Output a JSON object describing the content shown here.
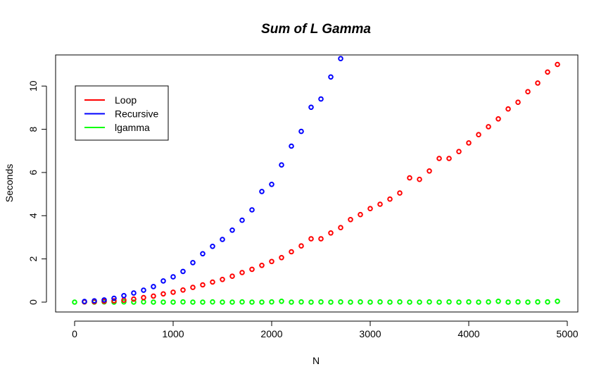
{
  "chart_data": {
    "type": "scatter",
    "title": "Sum of L Gamma",
    "xlabel": "N",
    "ylabel": "Seconds",
    "xlim": [
      0,
      5000
    ],
    "ylim": [
      0,
      11.3
    ],
    "xticks": [
      "0",
      "1000",
      "2000",
      "3000",
      "4000",
      "5000"
    ],
    "yticks": [
      "0",
      "2",
      "4",
      "6",
      "8",
      "10"
    ],
    "legend": {
      "position": "top-left"
    },
    "grid": false,
    "series": [
      {
        "name": "Loop",
        "color": "#FF0000",
        "x": [
          100,
          200,
          300,
          400,
          500,
          600,
          700,
          800,
          900,
          1000,
          1100,
          1200,
          1300,
          1400,
          1500,
          1600,
          1700,
          1800,
          1900,
          2000,
          2100,
          2200,
          2300,
          2400,
          2500,
          2600,
          2700,
          2800,
          2900,
          3000,
          3100,
          3200,
          3300,
          3400,
          3500,
          3600,
          3700,
          3800,
          3900,
          4000,
          4100,
          4200,
          4300,
          4400,
          4500,
          4600,
          4700,
          4800,
          4900
        ],
        "values": [
          0.01,
          0.02,
          0.04,
          0.06,
          0.09,
          0.14,
          0.21,
          0.28,
          0.38,
          0.46,
          0.56,
          0.68,
          0.8,
          0.93,
          1.05,
          1.2,
          1.37,
          1.52,
          1.7,
          1.88,
          2.06,
          2.33,
          2.6,
          2.93,
          2.93,
          3.2,
          3.45,
          3.82,
          4.05,
          4.33,
          4.53,
          4.77,
          5.05,
          5.75,
          5.68,
          6.07,
          6.65,
          6.65,
          6.97,
          7.37,
          7.75,
          8.12,
          8.48,
          8.94,
          9.25,
          9.74,
          10.14,
          10.65,
          11.0
        ]
      },
      {
        "name": "Recursive",
        "color": "#0000FF",
        "x": [
          100,
          200,
          300,
          400,
          500,
          600,
          700,
          800,
          900,
          1000,
          1100,
          1200,
          1300,
          1400,
          1500,
          1600,
          1700,
          1800,
          1900,
          2000,
          2100,
          2200,
          2300,
          2400,
          2500,
          2600,
          2700
        ],
        "values": [
          0.03,
          0.06,
          0.1,
          0.18,
          0.3,
          0.42,
          0.55,
          0.72,
          0.98,
          1.17,
          1.42,
          1.83,
          2.24,
          2.58,
          2.9,
          3.33,
          3.79,
          4.27,
          5.12,
          5.45,
          6.35,
          7.22,
          7.9,
          9.02,
          9.4,
          10.42,
          11.27
        ]
      },
      {
        "name": "lgamma",
        "color": "#00FF00",
        "x": [
          0,
          100,
          200,
          300,
          400,
          500,
          600,
          700,
          800,
          900,
          1000,
          1100,
          1200,
          1300,
          1400,
          1500,
          1600,
          1700,
          1800,
          1900,
          2000,
          2100,
          2200,
          2300,
          2400,
          2500,
          2600,
          2700,
          2800,
          2900,
          3000,
          3100,
          3200,
          3300,
          3400,
          3500,
          3600,
          3700,
          3800,
          3900,
          4000,
          4100,
          4200,
          4300,
          4400,
          4500,
          4600,
          4700,
          4800,
          4900
        ],
        "values": [
          0.0,
          0.01,
          0.0,
          0.01,
          0.0,
          0.01,
          0.0,
          0.01,
          0.0,
          0.0,
          0.0,
          0.01,
          0.0,
          0.0,
          0.01,
          0.0,
          0.0,
          0.01,
          0.0,
          0.0,
          0.01,
          0.04,
          0.0,
          0.01,
          0.0,
          0.01,
          0.0,
          0.01,
          0.0,
          0.01,
          0.0,
          0.01,
          0.0,
          0.01,
          0.0,
          0.0,
          0.01,
          0.0,
          0.01,
          0.0,
          0.01,
          0.0,
          0.01,
          0.04,
          0.0,
          0.01,
          0.0,
          0.01,
          0.01,
          0.04
        ]
      }
    ]
  }
}
